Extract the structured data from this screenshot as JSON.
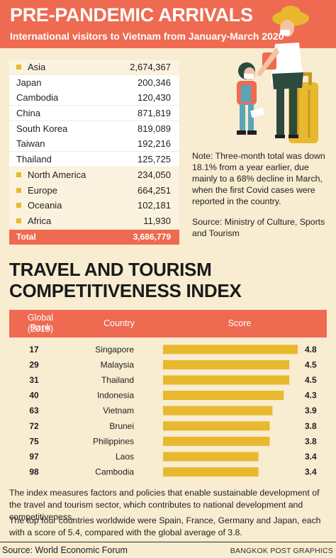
{
  "header": {
    "title": "PRE-PANDEMIC ARRIVALS",
    "subtitle": "International visitors to Vietnam from January-March 2020"
  },
  "arrivals": {
    "rows": [
      {
        "name": "Asia",
        "value": "2,674,367",
        "region": true
      },
      {
        "name": "Japan",
        "value": "200,346",
        "region": false
      },
      {
        "name": "Cambodia",
        "value": "120,430",
        "region": false
      },
      {
        "name": "China",
        "value": "871,819",
        "region": false
      },
      {
        "name": "South Korea",
        "value": "819,089",
        "region": false
      },
      {
        "name": "Taiwan",
        "value": "192,216",
        "region": false
      },
      {
        "name": "Thailand",
        "value": "125,725",
        "region": false
      },
      {
        "name": "North America",
        "value": "234,050",
        "region": true
      },
      {
        "name": "Europe",
        "value": "664,251",
        "region": true
      },
      {
        "name": "Oceania",
        "value": "102,181",
        "region": true
      },
      {
        "name": "Africa",
        "value": "11,930",
        "region": true
      }
    ],
    "total_label": "Total",
    "total_value": "3,686,779",
    "bullet_color": "#e8b82e"
  },
  "note": "Note: Three-month total was down 18.1% from a year earlier, due mainly to a 68% decline in March, when the first Covid cases were reported in the country.",
  "source_right": "Source: Ministry of Culture, Sports and Tourism",
  "index": {
    "title_line1": "TRAVEL AND TOURISM",
    "title_line2": "COMPETITIVENESS INDEX",
    "col_rank": "Global Rank",
    "col_rank_sub": "(2019)",
    "col_country": "Country",
    "col_score": "Score"
  },
  "chart_data": {
    "type": "bar",
    "orientation": "horizontal",
    "categories": [
      "Singapore",
      "Malaysia",
      "Thailand",
      "Indonesia",
      "Vietnam",
      "Brunei",
      "Philippines",
      "Laos",
      "Cambodia"
    ],
    "ranks": [
      "17",
      "29",
      "31",
      "40",
      "63",
      "72",
      "75",
      "97",
      "98"
    ],
    "values": [
      4.8,
      4.5,
      4.5,
      4.3,
      3.9,
      3.8,
      3.8,
      3.4,
      3.4
    ],
    "value_labels": [
      "4.8",
      "4.5",
      "4.5",
      "4.3",
      "3.9",
      "3.8",
      "3.8",
      "3.4",
      "3.4"
    ],
    "bar_color": "#e8b82e",
    "grid": false
  },
  "footer": {
    "para1": "The index measures factors and policies that enable sustainable development of the travel and tourism sector, which contributes to national development and competitiveness.",
    "para2": "The top four countries worldwide were Spain, France, Germany and Japan, each with a score of 5.4, compared with the global average of 3.8.",
    "source": "Source: World Economic Forum",
    "credit": "BANGKOK POST GRAPHICS"
  },
  "colors": {
    "accent": "#ee6a50",
    "background": "#f8ecd1",
    "bar": "#e8b82e"
  }
}
